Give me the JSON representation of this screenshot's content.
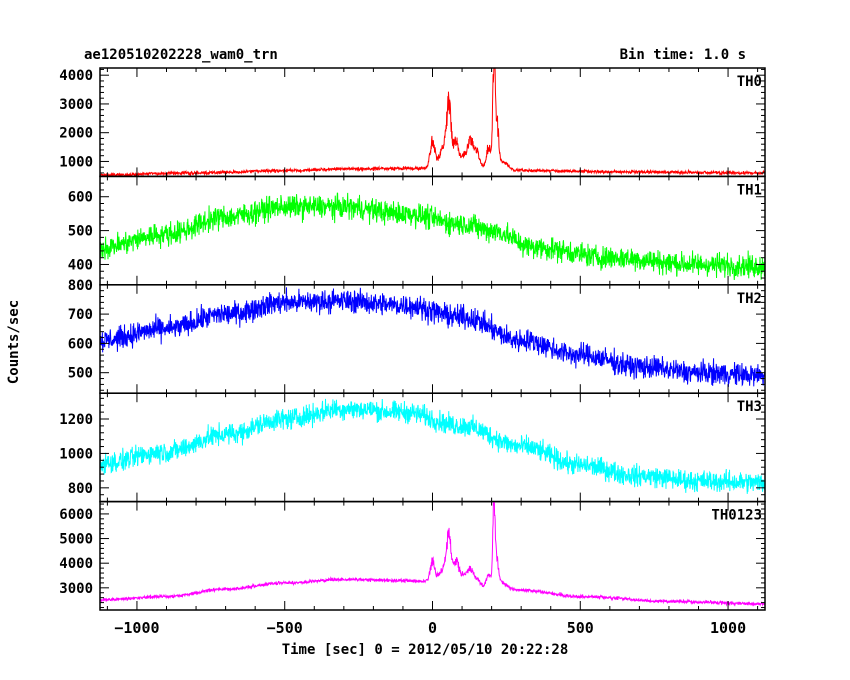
{
  "header": {
    "title": "ae120510202228_wam0_trn",
    "bin_time": "Bin time: 1.0 s"
  },
  "chart_data": {
    "type": "line",
    "xlabel": "Time [sec] 0 = 2012/05/10 20:22:28",
    "ylabel": "Counts/sec",
    "xlim": [
      -1125,
      1125
    ],
    "xticks": [
      -1000,
      -500,
      0,
      500,
      1000
    ],
    "xtick_labels": [
      "−1000",
      "−500",
      "0",
      "500",
      "1000"
    ],
    "panels": [
      {
        "name": "TH0",
        "color": "#ff0000",
        "ylim": [
          480,
          4250
        ],
        "yticks": [
          1000,
          2000,
          3000,
          4000
        ],
        "baseline": [
          [
            -1125,
            530
          ],
          [
            -800,
            600
          ],
          [
            -500,
            680
          ],
          [
            -300,
            740
          ],
          [
            0,
            760
          ],
          [
            300,
            690
          ],
          [
            600,
            640
          ],
          [
            1125,
            600
          ]
        ],
        "noise": 45,
        "peaks": [
          [
            0,
            1000,
            8
          ],
          [
            35,
            700,
            12
          ],
          [
            55,
            2000,
            8
          ],
          [
            80,
            900,
            10
          ],
          [
            110,
            500,
            10
          ],
          [
            130,
            900,
            8
          ],
          [
            150,
            600,
            10
          ],
          [
            190,
            800,
            8
          ],
          [
            208,
            3600,
            4
          ],
          [
            218,
            1500,
            6
          ],
          [
            240,
            300,
            15
          ]
        ]
      },
      {
        "name": "TH1",
        "color": "#00ff00",
        "ylim": [
          340,
          660
        ],
        "yticks": [
          400,
          500,
          600
        ],
        "baseline": [
          [
            -1125,
            450
          ],
          [
            -900,
            490
          ],
          [
            -700,
            540
          ],
          [
            -500,
            570
          ],
          [
            -300,
            570
          ],
          [
            -100,
            550
          ],
          [
            100,
            520
          ],
          [
            200,
            500
          ],
          [
            350,
            450
          ],
          [
            600,
            420
          ],
          [
            900,
            400
          ],
          [
            1125,
            395
          ]
        ],
        "noise": 28,
        "peaks": []
      },
      {
        "name": "TH2",
        "color": "#0000ff",
        "ylim": [
          430,
          800
        ],
        "yticks": [
          500,
          600,
          700,
          800
        ],
        "baseline": [
          [
            -1125,
            610
          ],
          [
            -900,
            650
          ],
          [
            -700,
            700
          ],
          [
            -500,
            740
          ],
          [
            -300,
            745
          ],
          [
            -100,
            730
          ],
          [
            100,
            690
          ],
          [
            300,
            610
          ],
          [
            500,
            560
          ],
          [
            700,
            520
          ],
          [
            900,
            500
          ],
          [
            1125,
            490
          ]
        ],
        "noise": 32,
        "peaks": []
      },
      {
        "name": "TH3",
        "color": "#00ffff",
        "ylim": [
          720,
          1350
        ],
        "yticks": [
          800,
          1000,
          1200
        ],
        "baseline": [
          [
            -1125,
            940
          ],
          [
            -900,
            1010
          ],
          [
            -700,
            1110
          ],
          [
            -500,
            1200
          ],
          [
            -300,
            1260
          ],
          [
            -100,
            1240
          ],
          [
            100,
            1160
          ],
          [
            300,
            1040
          ],
          [
            500,
            930
          ],
          [
            700,
            870
          ],
          [
            900,
            840
          ],
          [
            1125,
            830
          ]
        ],
        "noise": 50,
        "peaks": []
      },
      {
        "name": "TH0123",
        "color": "#ff00ff",
        "ylim": [
          2100,
          6500
        ],
        "yticks": [
          3000,
          4000,
          5000,
          6000
        ],
        "baseline": [
          [
            -1125,
            2520
          ],
          [
            -900,
            2650
          ],
          [
            -700,
            2950
          ],
          [
            -500,
            3200
          ],
          [
            -300,
            3340
          ],
          [
            -100,
            3300
          ],
          [
            0,
            3250
          ],
          [
            300,
            2900
          ],
          [
            500,
            2650
          ],
          [
            800,
            2450
          ],
          [
            1125,
            2350
          ]
        ],
        "noise": 55,
        "peaks": [
          [
            0,
            800,
            8
          ],
          [
            35,
            500,
            12
          ],
          [
            55,
            1700,
            8
          ],
          [
            80,
            900,
            10
          ],
          [
            110,
            400,
            10
          ],
          [
            130,
            600,
            8
          ],
          [
            150,
            300,
            10
          ],
          [
            190,
            500,
            8
          ],
          [
            208,
            3000,
            4
          ],
          [
            218,
            1200,
            6
          ],
          [
            240,
            250,
            15
          ]
        ]
      }
    ]
  }
}
